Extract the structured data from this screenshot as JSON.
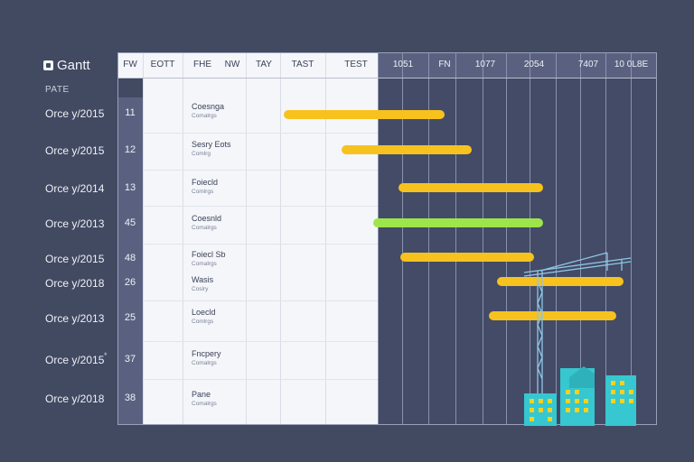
{
  "app": {
    "title": "Gantt"
  },
  "sidebar": {
    "section_label": "PATE"
  },
  "header": {
    "columns": [
      "FW",
      "EOTT",
      "FHE",
      "NW",
      "TAY",
      "TAST",
      "TEST"
    ],
    "timeline": [
      "1051",
      "FN",
      "1077",
      "2054",
      "7407",
      "10 0L8E"
    ]
  },
  "rows": [
    {
      "date": "Orce y/2015",
      "id": "11",
      "name": "Coesnga",
      "sub": "Comalrgs"
    },
    {
      "date": "Orce y/2015",
      "id": "12",
      "name": "Sesry Eots",
      "sub": "Comlrg"
    },
    {
      "date": "Orce y/2014",
      "id": "13",
      "name": "Foiecld",
      "sub": "Comlrgs"
    },
    {
      "date": "Orce y/2013",
      "id": "45",
      "name": "Coesnld",
      "sub": "Comalrgs"
    },
    {
      "date": "Orce y/2015",
      "id": "48",
      "name": "Foiecl Sb",
      "sub": "Comalrgs"
    },
    {
      "date": "Orce y/2018",
      "id": "26",
      "name": "Wasis",
      "sub": "Coslry"
    },
    {
      "date": "Orce y/2013",
      "id": "25",
      "name": "Loecld",
      "sub": "Comlrgs"
    },
    {
      "date": "Orce y/2015",
      "id": "37",
      "name": "Fncpery",
      "sub": "Comalrgs"
    },
    {
      "date": "Orce y/2018",
      "id": "38",
      "name": "Pane",
      "sub": "Comalrgs"
    }
  ],
  "marker": "*",
  "colors": {
    "yellow": "#f7c21e",
    "green": "#9ee54b",
    "teal": "#36c7d1",
    "crane": "#8fc6e4"
  }
}
